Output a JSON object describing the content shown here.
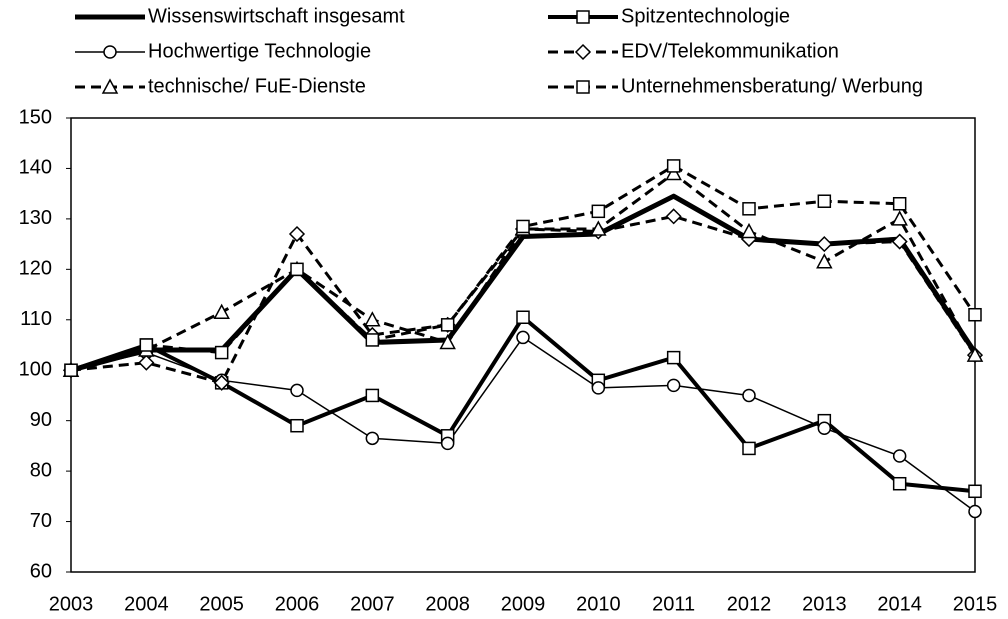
{
  "chart_data": {
    "type": "line",
    "categories": [
      "2003",
      "2004",
      "2005",
      "2006",
      "2007",
      "2008",
      "2009",
      "2010",
      "2011",
      "2012",
      "2013",
      "2014",
      "2015"
    ],
    "ylim": [
      60,
      150
    ],
    "yticks": [
      60,
      70,
      80,
      90,
      100,
      110,
      120,
      130,
      140,
      150
    ],
    "series": [
      {
        "name": "Wissenswirtschaft insgesamt",
        "color": "#000000",
        "width": 5,
        "dash": false,
        "marker": "none",
        "values": [
          100,
          104,
          104,
          120,
          105.5,
          106,
          126.5,
          127,
          134.5,
          126,
          125,
          126,
          103.5
        ]
      },
      {
        "name": "Spitzentechnologie",
        "color": "#000000",
        "width": 4,
        "dash": false,
        "marker": "square",
        "values": [
          100,
          105,
          97.5,
          89,
          95,
          87,
          110.5,
          98,
          102.5,
          84.5,
          90,
          77.5,
          76
        ]
      },
      {
        "name": "Hochwertige Technologie",
        "color": "#000000",
        "width": 1.5,
        "dash": false,
        "marker": "circle",
        "values": [
          100,
          103.5,
          98,
          96,
          86.5,
          85.5,
          106.5,
          96.5,
          97,
          95,
          88.5,
          83,
          72
        ]
      },
      {
        "name": "EDV/Telekommunikation",
        "color": "#000000",
        "width": 3,
        "dash": true,
        "marker": "diamond",
        "values": [
          100,
          101.5,
          97.5,
          127,
          107,
          109,
          128,
          127.5,
          130.5,
          126,
          125,
          125.5,
          103
        ]
      },
      {
        "name": "technische/ FuE-Dienste",
        "color": "#000000",
        "width": 3,
        "dash": true,
        "marker": "triangle",
        "values": [
          100,
          104,
          111.5,
          120,
          110,
          105.5,
          128,
          128,
          139,
          127.5,
          121.5,
          130,
          103
        ]
      },
      {
        "name": "Unternehmensberatung/ Werbung",
        "color": "#000000",
        "width": 3,
        "dash": true,
        "marker": "square",
        "values": [
          100,
          105,
          103.5,
          120,
          106,
          109,
          128.5,
          131.5,
          140.5,
          132,
          133.5,
          133,
          111
        ]
      }
    ]
  }
}
